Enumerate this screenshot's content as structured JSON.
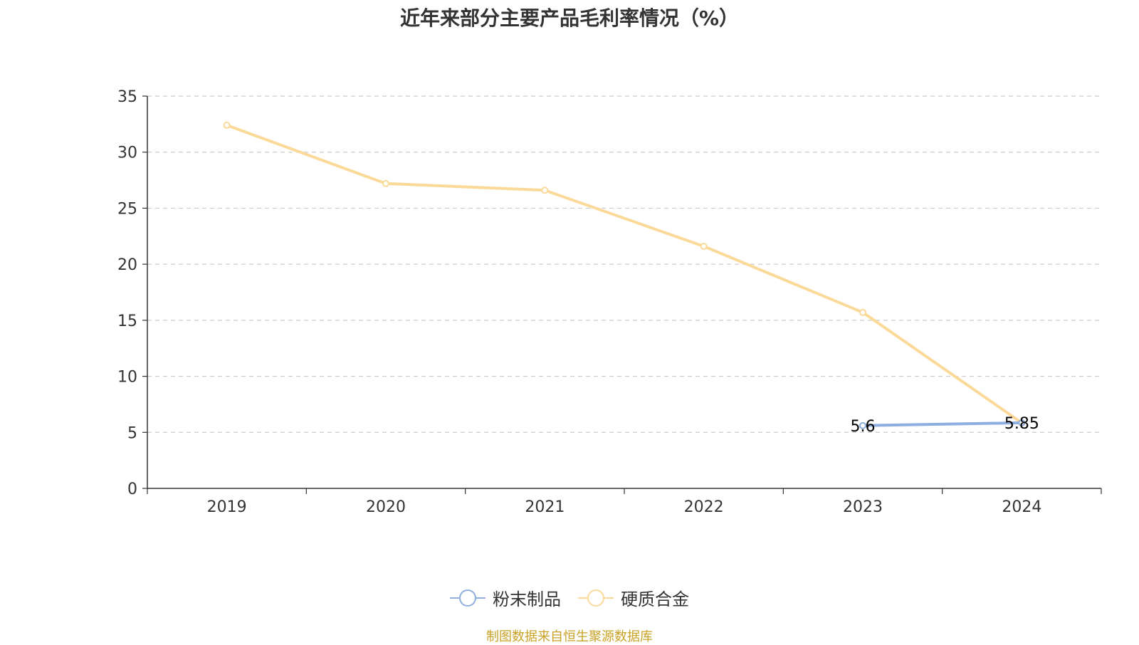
{
  "chart_data": {
    "type": "line",
    "title": "近年来部分主要产品毛利率情况（%）",
    "categories": [
      "2019",
      "2020",
      "2021",
      "2022",
      "2023",
      "2024"
    ],
    "ylim": [
      0,
      35
    ],
    "yticks": [
      0,
      5,
      10,
      15,
      20,
      25,
      30,
      35
    ],
    "grid": true,
    "legend_position": "bottom-center",
    "series": [
      {
        "name": "粉末制品",
        "color": "#8eaedf",
        "values": [
          null,
          null,
          null,
          null,
          5.6,
          5.85
        ],
        "labels": [
          "",
          "",
          "",
          "",
          "5.6",
          "5.85"
        ]
      },
      {
        "name": "硬质合金",
        "color": "#fbd999",
        "values": [
          32.4,
          27.2,
          26.6,
          21.6,
          15.7,
          5.85
        ],
        "labels": []
      }
    ],
    "source": "制图数据来自恒生聚源数据库"
  }
}
